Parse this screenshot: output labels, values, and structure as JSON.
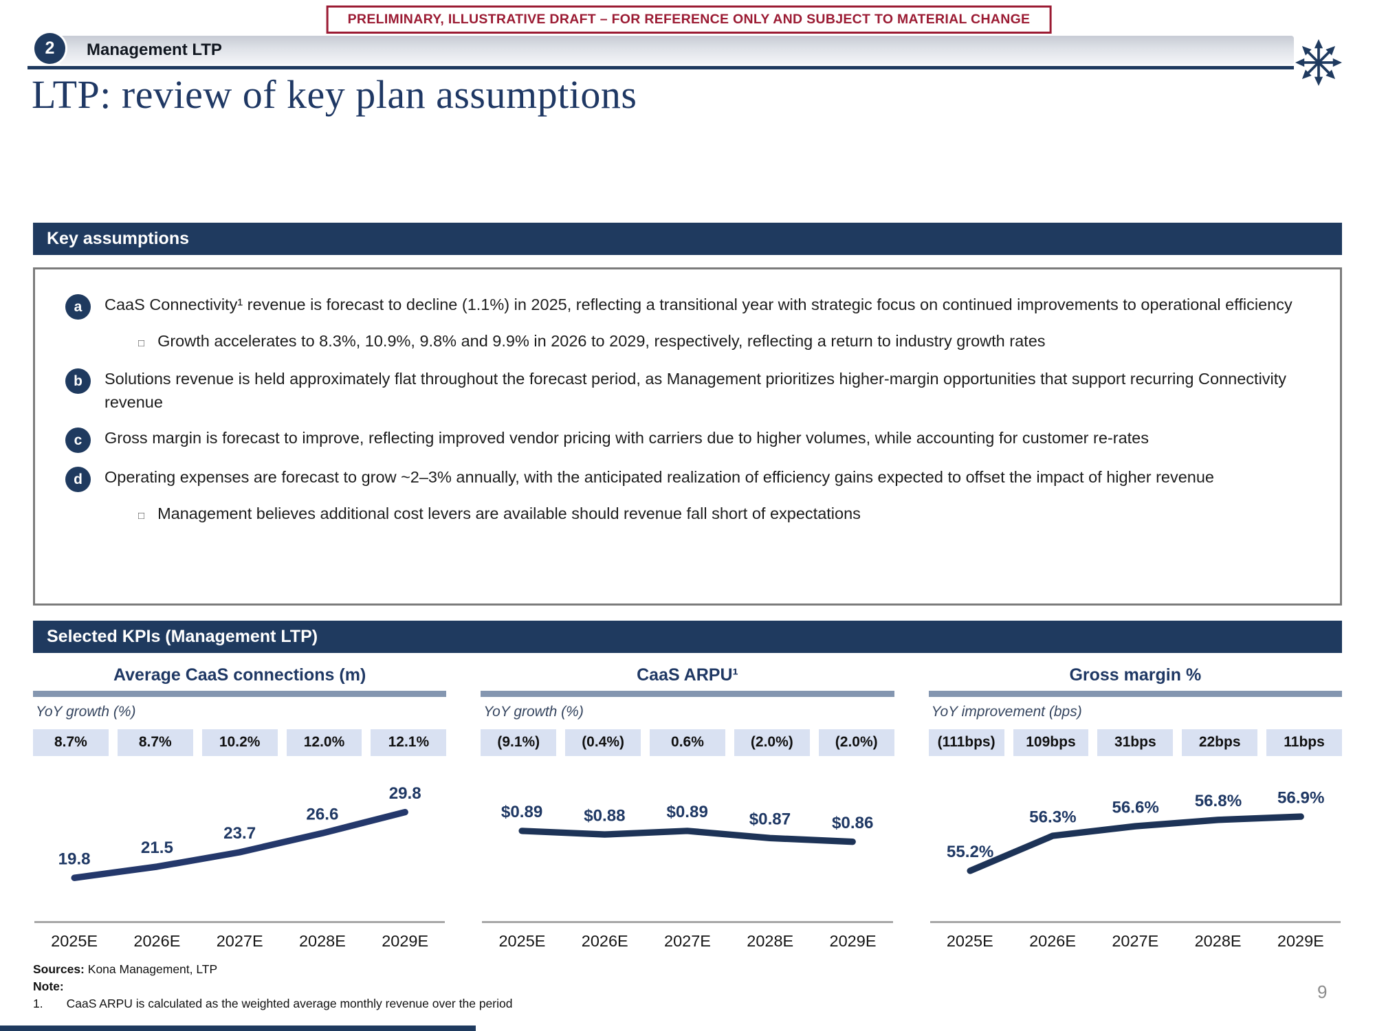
{
  "banner": {
    "text": "PRELIMINARY, ILLUSTRATIVE DRAFT – FOR REFERENCE ONLY AND SUBJECT TO MATERIAL CHANGE"
  },
  "header": {
    "section_number": "2",
    "section_label": "Management LTP"
  },
  "title": "LTP: review of key plan assumptions",
  "key_assumptions": {
    "heading": "Key assumptions",
    "sub_marker_glyph": "□",
    "bullets": [
      {
        "marker": "a",
        "text": "CaaS Connectivity¹ revenue is forecast to decline (1.1%) in 2025, reflecting a transitional year with strategic focus on continued improvements to operational efficiency",
        "sub": [
          "Growth accelerates to 8.3%, 10.9%, 9.8% and 9.9% in 2026 to 2029, respectively, reflecting a return to industry growth rates"
        ]
      },
      {
        "marker": "b",
        "text": "Solutions revenue is held approximately flat throughout the forecast period, as Management prioritizes higher-margin opportunities that support recurring Connectivity revenue",
        "sub": []
      },
      {
        "marker": "c",
        "text": "Gross margin is forecast to improve, reflecting improved vendor pricing with carriers due to higher volumes, while accounting for customer re-rates",
        "sub": []
      },
      {
        "marker": "d",
        "text": "Operating expenses are forecast to grow ~2–3% annually, with the anticipated realization of efficiency gains expected to offset the impact of higher revenue",
        "sub": [
          "Management believes additional cost levers are available should revenue fall short of expectations"
        ]
      }
    ]
  },
  "kpis": {
    "heading": "Selected KPIs (Management LTP)"
  },
  "chart_data": [
    {
      "type": "line",
      "title": "Average CaaS connections (m)",
      "growth_label": "YoY growth (%)",
      "growth_values": [
        "8.7%",
        "8.7%",
        "10.2%",
        "12.0%",
        "12.1%"
      ],
      "categories": [
        "2025E",
        "2026E",
        "2027E",
        "2028E",
        "2029E"
      ],
      "values": [
        19.8,
        21.5,
        23.7,
        26.6,
        29.8
      ],
      "value_labels": [
        "19.8",
        "21.5",
        "23.7",
        "26.6",
        "29.8"
      ],
      "ylim": [
        16.5,
        33
      ],
      "line_color": "#24386B",
      "grid": false,
      "legend": "none"
    },
    {
      "type": "line",
      "title": "CaaS ARPU¹",
      "growth_label": "YoY growth (%)",
      "growth_values": [
        "(9.1%)",
        "(0.4%)",
        "0.6%",
        "(2.0%)",
        "(2.0%)"
      ],
      "categories": [
        "2025E",
        "2026E",
        "2027E",
        "2028E",
        "2029E"
      ],
      "values": [
        0.89,
        0.88,
        0.89,
        0.87,
        0.86
      ],
      "value_labels": [
        "$0.89",
        "$0.88",
        "$0.89",
        "$0.87",
        "$0.86"
      ],
      "ylim": [
        0.7,
        1.0
      ],
      "line_color": "#1d3357",
      "grid": false,
      "legend": "none"
    },
    {
      "type": "line",
      "title": "Gross margin %",
      "growth_label": "YoY improvement (bps)",
      "growth_values": [
        "(111bps)",
        "109bps",
        "31bps",
        "22bps",
        "11bps"
      ],
      "categories": [
        "2025E",
        "2026E",
        "2027E",
        "2028E",
        "2029E"
      ],
      "values": [
        55.2,
        56.3,
        56.6,
        56.8,
        56.9
      ],
      "value_labels": [
        "55.2%",
        "56.3%",
        "56.6%",
        "56.8%",
        "56.9%"
      ],
      "ylim": [
        54.3,
        57.7
      ],
      "line_color": "#1d3357",
      "grid": false,
      "legend": "none"
    }
  ],
  "footer": {
    "sources_label": "Sources:",
    "sources_text": "Kona Management, LTP",
    "note_label": "Note:",
    "note_items": [
      {
        "num": "1.",
        "text": "CaaS ARPU is calculated as the weighted average monthly revenue over the period"
      }
    ],
    "page_number": "9"
  }
}
